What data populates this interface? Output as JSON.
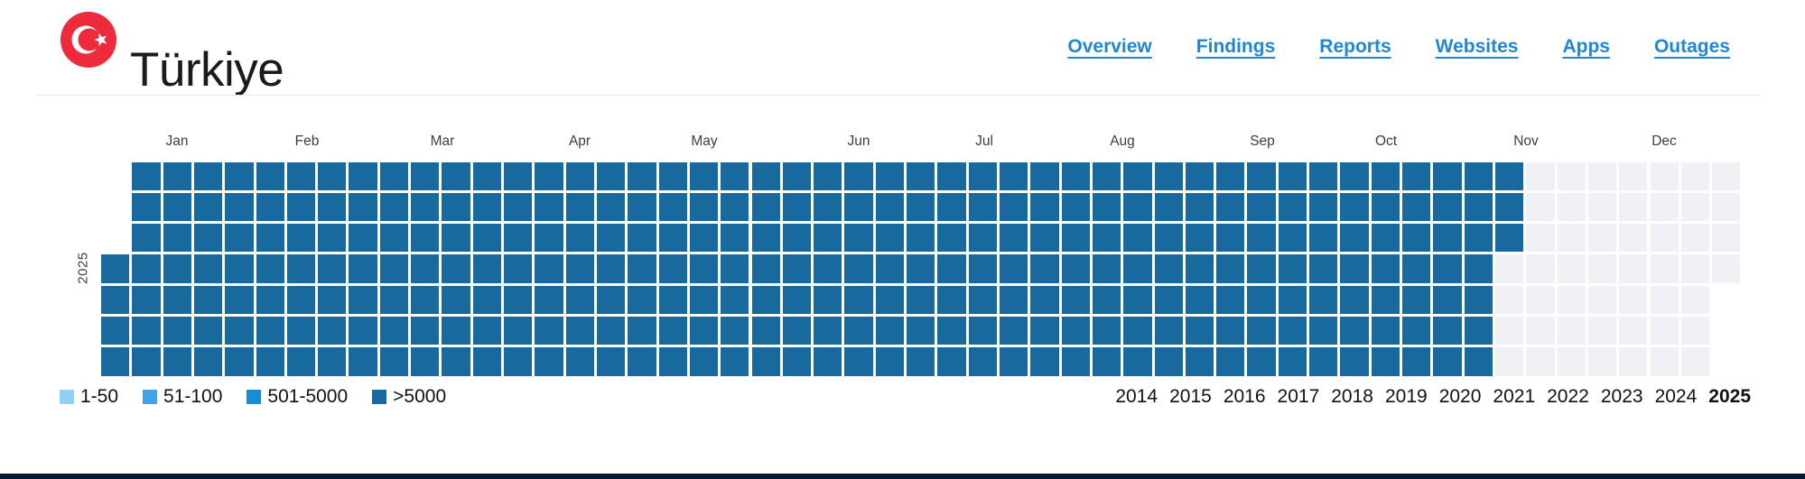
{
  "header": {
    "country_name": "Türkiye",
    "flag_icon": "turkey-flag",
    "flag_colors": {
      "red": "#ee2a3d",
      "white": "#ffffff"
    },
    "nav": {
      "link_color": "#1f87d3",
      "items": [
        {
          "label": "Overview"
        },
        {
          "label": "Findings"
        },
        {
          "label": "Reports"
        },
        {
          "label": "Websites"
        },
        {
          "label": "Apps"
        },
        {
          "label": "Outages"
        }
      ]
    }
  },
  "chart_data": {
    "type": "heatmap",
    "description": "Calendar heatmap of measurement counts per day for year 2025; every measured day is in the >5000 bucket, days after ~Nov 11 are empty",
    "year_label": "2025",
    "months": [
      "Jan",
      "Feb",
      "Mar",
      "Apr",
      "May",
      "Jun",
      "Jul",
      "Aug",
      "Sep",
      "Oct",
      "Nov",
      "Dec"
    ],
    "rows": 7,
    "cols": 53,
    "first_col_present_rows": [
      3,
      4,
      5,
      6
    ],
    "last_col_present_rows": [
      0,
      1,
      2,
      3
    ],
    "filled_full_cols": 45,
    "partial_col": {
      "col": 45,
      "filled_rows": [
        0,
        1,
        2
      ]
    },
    "filled_color": "#17699e",
    "empty_color": "#f0f1f4",
    "legend": [
      {
        "label": "1-50",
        "color": "#8fd2f3"
      },
      {
        "label": "51-100",
        "color": "#41a3e6"
      },
      {
        "label": "501-5000",
        "color": "#1a8cd3"
      },
      {
        "label": ">5000",
        "color": "#17699e"
      }
    ],
    "years": [
      "2014",
      "2015",
      "2016",
      "2017",
      "2018",
      "2019",
      "2020",
      "2021",
      "2022",
      "2023",
      "2024",
      "2025"
    ],
    "selected_year": "2025"
  }
}
